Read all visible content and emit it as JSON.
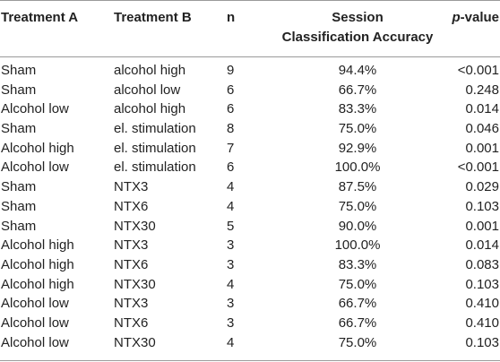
{
  "table": {
    "headers": {
      "treatment_a": "Treatment A",
      "treatment_b": "Treatment B",
      "n": "n",
      "accuracy_line1": "Session",
      "accuracy_line2": "Classification Accuracy",
      "p_italic": "p",
      "p_suffix": "-value"
    },
    "rows": [
      {
        "a": "Sham",
        "b": "alcohol high",
        "n": "9",
        "acc": "94.4%",
        "p": "<0.001"
      },
      {
        "a": "Sham",
        "b": "alcohol low",
        "n": "6",
        "acc": "66.7%",
        "p": "0.248"
      },
      {
        "a": "Alcohol low",
        "b": "alcohol high",
        "n": "6",
        "acc": "83.3%",
        "p": "0.014"
      },
      {
        "a": "Sham",
        "b": "el. stimulation",
        "n": "8",
        "acc": "75.0%",
        "p": "0.046"
      },
      {
        "a": "Alcohol high",
        "b": "el. stimulation",
        "n": "7",
        "acc": "92.9%",
        "p": "0.001"
      },
      {
        "a": "Alcohol low",
        "b": "el. stimulation",
        "n": "6",
        "acc": "100.0%",
        "p": "<0.001"
      },
      {
        "a": "Sham",
        "b": "NTX3",
        "n": "4",
        "acc": "87.5%",
        "p": "0.029"
      },
      {
        "a": "Sham",
        "b": "NTX6",
        "n": "4",
        "acc": "75.0%",
        "p": "0.103"
      },
      {
        "a": "Sham",
        "b": "NTX30",
        "n": "5",
        "acc": "90.0%",
        "p": "0.001"
      },
      {
        "a": "Alcohol high",
        "b": "NTX3",
        "n": "3",
        "acc": "100.0%",
        "p": "0.014"
      },
      {
        "a": "Alcohol high",
        "b": "NTX6",
        "n": "3",
        "acc": "83.3%",
        "p": "0.083"
      },
      {
        "a": "Alcohol high",
        "b": "NTX30",
        "n": "4",
        "acc": "75.0%",
        "p": "0.103"
      },
      {
        "a": "Alcohol low",
        "b": "NTX3",
        "n": "3",
        "acc": "66.7%",
        "p": "0.410"
      },
      {
        "a": "Alcohol low",
        "b": "NTX6",
        "n": "3",
        "acc": "66.7%",
        "p": "0.410"
      },
      {
        "a": "Alcohol low",
        "b": "NTX30",
        "n": "4",
        "acc": "75.0%",
        "p": "0.103"
      }
    ]
  }
}
